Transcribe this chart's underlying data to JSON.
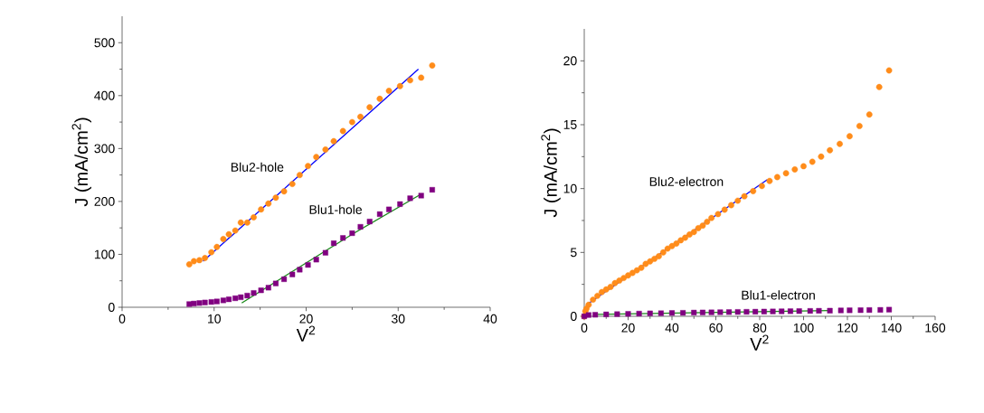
{
  "chart_data": [
    {
      "type": "scatter",
      "xlabel": "V$^{2}$",
      "ylabel": "J (mA/cm$^{2}$)",
      "xlim": [
        0,
        40
      ],
      "ylim": [
        0,
        550
      ],
      "xticks": [
        0,
        10,
        20,
        30,
        40
      ],
      "yticks": [
        0,
        100,
        200,
        300,
        400,
        500
      ],
      "series": [
        {
          "marker": "circle",
          "color": "#ff8c1a",
          "x": [
            7.3,
            7.8,
            8.4,
            9,
            9.7,
            10.3,
            11,
            11.6,
            12.3,
            12.9,
            13.6,
            14.3,
            15.1,
            15.9,
            16.7,
            17.6,
            18.5,
            19.3,
            20.2,
            21.1,
            22.1,
            23,
            24,
            25,
            25.9,
            26.9,
            28,
            29,
            30.2,
            31.3,
            32.5,
            33.7
          ],
          "values": [
            81,
            87,
            89,
            93,
            104,
            114,
            129,
            138,
            145,
            160,
            160,
            170,
            185,
            196,
            207,
            219,
            233,
            250,
            267,
            284,
            298,
            314,
            333,
            350,
            360,
            378,
            394,
            409,
            418,
            429,
            434,
            457
          ]
        },
        {
          "marker": "square",
          "color": "#800080",
          "x": [
            7.3,
            7.8,
            8.4,
            9,
            9.7,
            10.3,
            11,
            11.6,
            12.3,
            12.9,
            13.6,
            14.3,
            15.1,
            15.9,
            16.7,
            17.6,
            18.5,
            19.3,
            20.2,
            21.1,
            22.1,
            23,
            24,
            25,
            25.9,
            26.9,
            28,
            29,
            30.2,
            31.3,
            32.5,
            33.7
          ],
          "values": [
            6,
            7,
            8,
            9,
            10,
            11,
            13,
            15,
            17,
            19,
            22,
            27,
            32,
            37,
            45,
            53,
            62,
            71,
            80,
            90,
            103,
            121,
            131,
            140,
            152,
            162,
            176,
            185,
            195,
            206,
            211,
            222
          ]
        },
        {
          "type": "line",
          "marker": "none",
          "color": "#0000ff",
          "x": [
            8.8,
            32.2
          ],
          "values": [
            87,
            450
          ]
        },
        {
          "type": "line",
          "marker": "none",
          "color": "#1a8a1a",
          "x": [
            13,
            25,
            32.5
          ],
          "values": [
            8,
            138,
            214
          ]
        }
      ],
      "annotations": [
        "Blu2-hole",
        "Blu1-hole"
      ]
    },
    {
      "type": "scatter",
      "xlabel": "V$^{2}$",
      "ylabel": "J (mA/cm$^{2}$)",
      "xlim": [
        0,
        160
      ],
      "ylim": [
        0,
        22.5
      ],
      "xticks": [
        0,
        20,
        40,
        60,
        80,
        100,
        120,
        140,
        160
      ],
      "yticks": [
        0,
        5,
        10,
        15,
        20
      ],
      "series": [
        {
          "marker": "circle",
          "color": "#ff8c1a",
          "x": [
            0,
            0.5,
            1,
            2,
            4,
            6,
            8,
            10,
            12,
            14,
            16,
            18,
            20,
            22,
            24,
            26,
            28,
            30,
            32,
            34,
            36,
            38,
            40,
            42,
            44,
            46,
            48,
            50,
            52,
            54,
            56,
            58,
            61,
            64,
            67,
            70,
            73,
            77,
            81,
            84.5,
            88,
            92,
            96,
            100,
            104,
            108,
            112,
            116.5,
            121,
            125.5,
            130,
            134.5,
            139
          ],
          "values": [
            0,
            0.4,
            0.6,
            0.9,
            1.3,
            1.6,
            1.9,
            2.1,
            2.3,
            2.6,
            2.8,
            3.0,
            3.2,
            3.4,
            3.6,
            3.8,
            4.1,
            4.3,
            4.5,
            4.7,
            5.0,
            5.3,
            5.5,
            5.7,
            5.95,
            6.15,
            6.4,
            6.6,
            6.9,
            7.1,
            7.4,
            7.7,
            8.0,
            8.35,
            8.7,
            9.05,
            9.4,
            9.8,
            10.2,
            10.6,
            10.9,
            11.2,
            11.5,
            11.75,
            12.1,
            12.5,
            13.0,
            13.5,
            14.1,
            14.9,
            15.8,
            17.95,
            19.25
          ]
        },
        {
          "marker": "square",
          "color": "#800080",
          "x": [
            0,
            2,
            5,
            10,
            15,
            20,
            25,
            30,
            35,
            40,
            45,
            50,
            54,
            58,
            62,
            66,
            70,
            74,
            78,
            82,
            86,
            90,
            94,
            98,
            103,
            107,
            112,
            117,
            121,
            126,
            130,
            135,
            139
          ],
          "values": [
            0,
            0.1,
            0.12,
            0.15,
            0.17,
            0.19,
            0.21,
            0.23,
            0.24,
            0.26,
            0.27,
            0.29,
            0.3,
            0.31,
            0.32,
            0.33,
            0.34,
            0.35,
            0.36,
            0.37,
            0.38,
            0.39,
            0.4,
            0.41,
            0.42,
            0.43,
            0.44,
            0.46,
            0.47,
            0.48,
            0.49,
            0.5,
            0.52
          ]
        },
        {
          "type": "line",
          "marker": "none",
          "color": "#0000ff",
          "x": [
            1.5,
            83.5
          ],
          "values": [
            0.95,
            10.7
          ]
        },
        {
          "type": "line",
          "marker": "none",
          "color": "#1a8a1a",
          "x": [
            6,
            112
          ],
          "values": [
            0.15,
            0.45
          ]
        }
      ],
      "annotations": [
        "Blu2-electron",
        "Blu1-electron"
      ]
    }
  ]
}
